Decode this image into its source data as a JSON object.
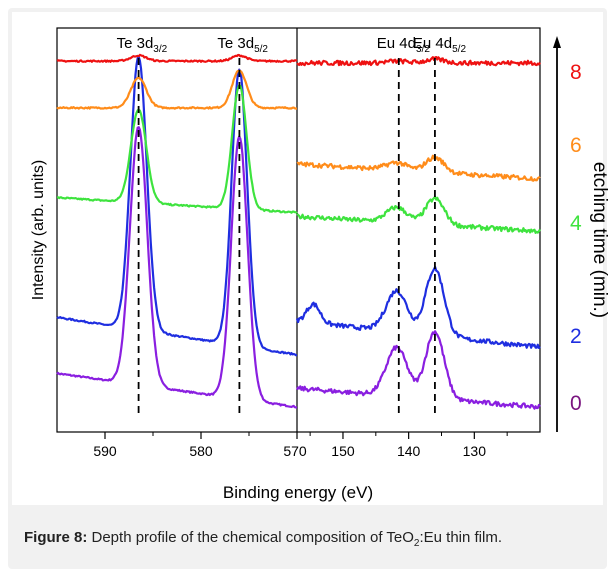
{
  "caption": {
    "label": "Figure 8:",
    "text_before": " Depth profile of the chemical composition of TeO",
    "text_sub": "2",
    "text_after": ":Eu thin film."
  },
  "colors": {
    "t0": "#8a1fe0",
    "t2": "#1f2ee0",
    "t4": "#3ee33e",
    "t6": "#ff8c1a",
    "t8": "#ee1111",
    "label0": "#7a1580",
    "axis": "#000000"
  },
  "chart_data": [
    {
      "panel": "Te 3d",
      "type": "line",
      "xlabel": "Binding energy (eV)",
      "ylabel": "Intensity (arb. units)",
      "xlim": [
        595,
        570
      ],
      "x_reversed": true,
      "xticks": [
        "590",
        "580",
        "570"
      ],
      "peak_labels": [
        {
          "main": "Te 3d",
          "sub": "3/2",
          "x": 586.5
        },
        {
          "main": "Te 3d",
          "sub": "5/2",
          "x": 576.0
        }
      ],
      "reference_lines": [
        586.5,
        576.0
      ],
      "series": [
        {
          "time": "0",
          "key": "t0",
          "baseline": 0.04,
          "peaks": [
            [
              586.5,
              0.69,
              0.9
            ],
            [
              576.0,
              0.7,
              0.85
            ]
          ],
          "slope": 0.09
        },
        {
          "time": "2",
          "key": "t2",
          "baseline": 0.18,
          "peaks": [
            [
              586.5,
              0.73,
              0.85
            ],
            [
              576.0,
              0.74,
              0.8
            ]
          ],
          "slope": 0.1
        },
        {
          "time": "4",
          "key": "t4",
          "baseline": 0.56,
          "peaks": [
            [
              586.5,
              0.25,
              0.8
            ],
            [
              576.0,
              0.33,
              0.75
            ]
          ],
          "slope": 0.04
        },
        {
          "time": "6",
          "key": "t6",
          "baseline": 0.84,
          "peaks": [
            [
              586.5,
              0.08,
              0.8
            ],
            [
              576.0,
              0.1,
              0.75
            ]
          ],
          "slope": 0.0
        },
        {
          "time": "8",
          "key": "t8",
          "baseline": 0.965,
          "peaks": [
            [
              586.5,
              0.015,
              0.8
            ],
            [
              576.0,
              0.015,
              0.75
            ]
          ],
          "slope": 0.0
        }
      ]
    },
    {
      "panel": "Eu 4d",
      "type": "line",
      "xlim": [
        157,
        120
      ],
      "x_reversed": true,
      "xticks": [
        "150",
        "140",
        "130"
      ],
      "peak_labels": [
        {
          "main": "Eu 4d",
          "sub": "3/2",
          "x": 141.5
        },
        {
          "main": "Eu 4d",
          "sub": "5/2",
          "x": 136.0
        }
      ],
      "reference_lines": [
        141.5,
        136.0
      ],
      "series": [
        {
          "time": "0",
          "key": "t0",
          "baseline": 0.04,
          "peaks": [
            [
              141.8,
              0.13,
              1.6
            ],
            [
              136.0,
              0.18,
              1.4
            ]
          ],
          "slope": 0.05
        },
        {
          "time": "2",
          "key": "t2",
          "baseline": 0.2,
          "peaks": [
            [
              141.8,
              0.11,
              1.6
            ],
            [
              136.0,
              0.18,
              1.4
            ],
            [
              154.5,
              0.05,
              1.0
            ]
          ],
          "slope": 0.07
        },
        {
          "time": "4",
          "key": "t4",
          "baseline": 0.51,
          "peaks": [
            [
              141.8,
              0.04,
              1.6
            ],
            [
              136.0,
              0.07,
              1.4
            ]
          ],
          "slope": 0.04
        },
        {
          "time": "6",
          "key": "t6",
          "baseline": 0.65,
          "peaks": [
            [
              141.8,
              0.02,
              1.6
            ],
            [
              136.0,
              0.04,
              1.4
            ]
          ],
          "slope": 0.04
        },
        {
          "time": "8",
          "key": "t8",
          "baseline": 0.96,
          "peaks": [
            [
              141.8,
              0.005,
              1.6
            ],
            [
              136.0,
              0.01,
              1.4
            ]
          ],
          "slope": 0.0
        }
      ]
    }
  ],
  "right_axis": {
    "label": "etching time (min.)",
    "ticks": [
      {
        "text": "8",
        "key": "t8"
      },
      {
        "text": "6",
        "key": "t6"
      },
      {
        "text": "4",
        "key": "t4"
      },
      {
        "text": "2",
        "key": "t2"
      },
      {
        "text": "0",
        "key": "label0"
      }
    ]
  }
}
